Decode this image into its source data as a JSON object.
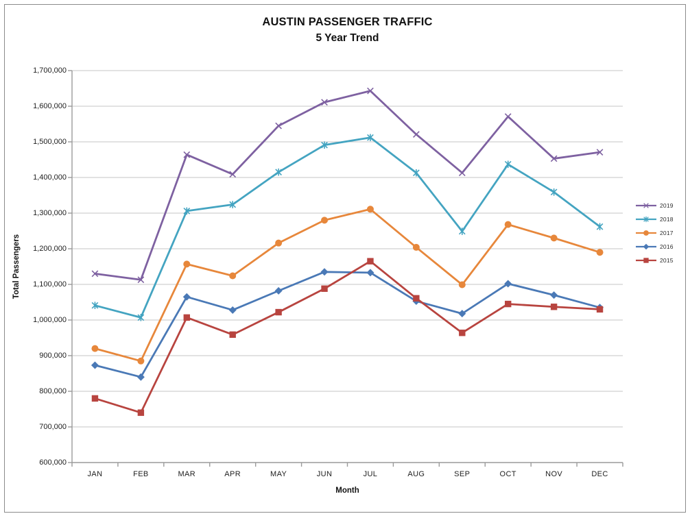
{
  "title": {
    "line1": "AUSTIN PASSENGER TRAFFIC",
    "line2": "5 Year Trend"
  },
  "axes": {
    "y_title": "Total Passengers",
    "x_title": "Month",
    "ytick_labels_top_to_bottom": [
      "1,700,000",
      "1,600,000",
      "1,500,000",
      "1,400,000",
      "1,300,000",
      "1,200,000",
      "1,100,000",
      "1,000,000",
      "900,000",
      "800,000",
      "700,000",
      "600,000"
    ]
  },
  "colors": {
    "gridline": "#c6c6c6",
    "axis_line": "#9a9a9a",
    "frame_border": "#8a8a8a",
    "background": "#ffffff"
  },
  "chart_data": {
    "type": "line",
    "title": "AUSTIN PASSENGER TRAFFIC",
    "subtitle": "5 Year Trend",
    "xlabel": "Month",
    "ylabel": "Total Passengers",
    "categories": [
      "JAN",
      "FEB",
      "MAR",
      "APR",
      "MAY",
      "JUN",
      "JUL",
      "AUG",
      "SEP",
      "OCT",
      "NOV",
      "DEC"
    ],
    "ylim": [
      600000,
      1700000
    ],
    "ytick_step": 100000,
    "grid": true,
    "legend_position": "right",
    "series": [
      {
        "name": "2019",
        "color": "#7e61a1",
        "marker": "x",
        "values": [
          1130000,
          1113000,
          1464000,
          1409000,
          1545000,
          1611000,
          1643000,
          1521000,
          1413000,
          1571000,
          1453000,
          1471000
        ]
      },
      {
        "name": "2018",
        "color": "#44a4c1",
        "marker": "asterisk",
        "values": [
          1041000,
          1007000,
          1306000,
          1324000,
          1415000,
          1491000,
          1512000,
          1413000,
          1249000,
          1437000,
          1359000,
          1262000
        ]
      },
      {
        "name": "2017",
        "color": "#e7873b",
        "marker": "circle",
        "values": [
          920000,
          885000,
          1157000,
          1124000,
          1216000,
          1280000,
          1311000,
          1204000,
          1099000,
          1268000,
          1230000,
          1190000
        ]
      },
      {
        "name": "2016",
        "color": "#4a79b6",
        "marker": "diamond",
        "values": [
          873000,
          840000,
          1065000,
          1028000,
          1082000,
          1135000,
          1133000,
          1053000,
          1018000,
          1102000,
          1070000,
          1035000
        ]
      },
      {
        "name": "2015",
        "color": "#b8443f",
        "marker": "square",
        "values": [
          780000,
          740000,
          1007000,
          959000,
          1022000,
          1088000,
          1165000,
          1061000,
          964000,
          1045000,
          1037000,
          1030000
        ]
      }
    ]
  }
}
